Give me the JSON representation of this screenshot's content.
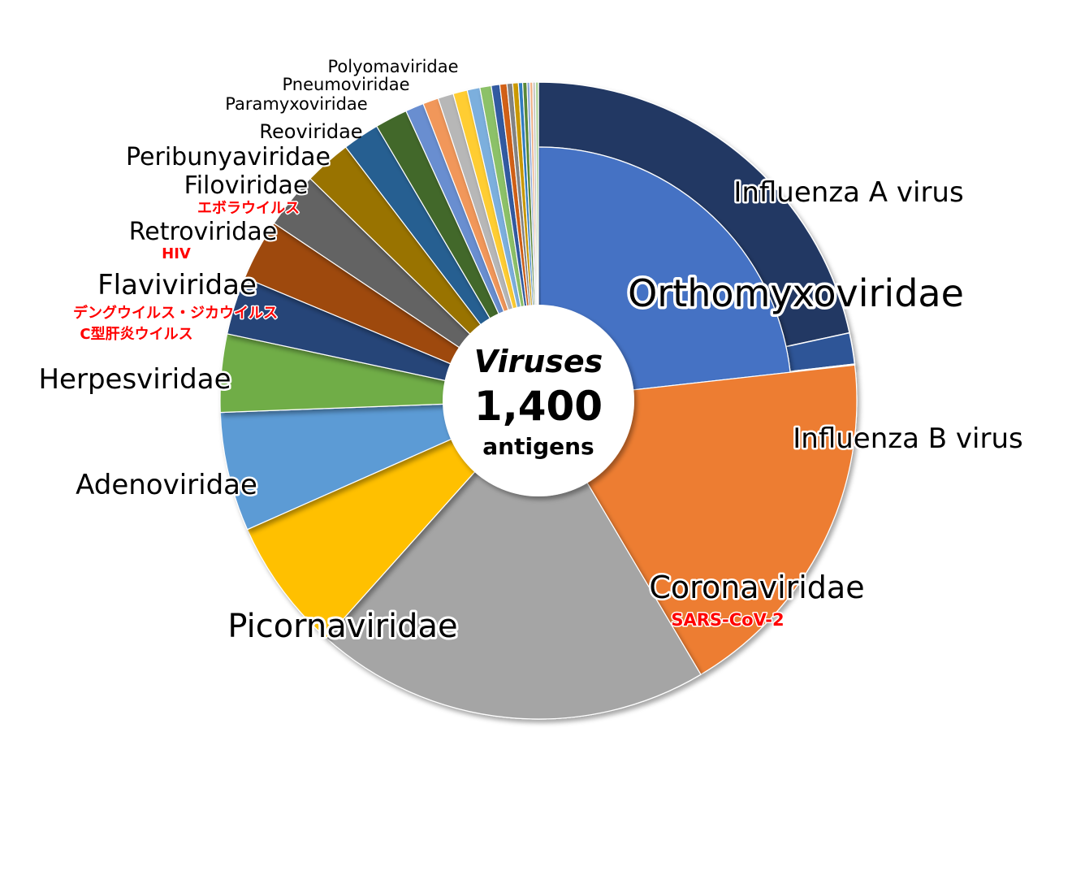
{
  "chart_data": {
    "type": "pie",
    "center": {
      "title": "Viruses",
      "value": "1,400",
      "unit": "antigens"
    },
    "outer_series": [
      {
        "label": "Influenza A virus",
        "value": 300,
        "color": "#203864"
      },
      {
        "label": "Influenza B virus",
        "value": 22,
        "color": "#2f5597"
      },
      {
        "label": "",
        "value": 0.7,
        "color": "#9dc3e6"
      }
    ],
    "slices": [
      {
        "label": "Orthomyxoviridae",
        "value": 323,
        "color": "#4472c4"
      },
      {
        "label": "Coronaviridae",
        "sublabel": "SARS-CoV-2",
        "value": 254,
        "color": "#ed7d31"
      },
      {
        "label": "Picornaviridae",
        "value": 280,
        "color": "#a5a5a5"
      },
      {
        "label": "Adenoviridae",
        "value": 94,
        "color": "#ffc000"
      },
      {
        "label": "Herpesviridae",
        "value": 84,
        "color": "#5b9bd5"
      },
      {
        "label": "Flaviviridae",
        "sublabel": "デングウイルス・ジカウイルス",
        "sublabel2": "C型肝炎ウイルス",
        "value": 55,
        "color": "#70ad47"
      },
      {
        "label": "Retroviridae",
        "sublabel": "HIV",
        "value": 41,
        "color": "#264478"
      },
      {
        "label": "Filoviridae",
        "sublabel": "エボラウイルス",
        "value": 43,
        "color": "#9e480e"
      },
      {
        "label": "Peribunyaviridae",
        "value": 40,
        "color": "#636363"
      },
      {
        "label": "Reoviridae",
        "value": 33,
        "color": "#997300"
      },
      {
        "label": "Paramyxoviridae",
        "value": 26,
        "color": "#255e91"
      },
      {
        "label": "Pneumoviridae",
        "value": 23,
        "color": "#43682b"
      },
      {
        "label": "Polyomaviridae",
        "value": 13,
        "color": "#698ed0"
      },
      {
        "label": "",
        "value": 11,
        "color": "#f1975a"
      },
      {
        "label": "",
        "value": 11,
        "color": "#b7b7b7"
      },
      {
        "label": "",
        "value": 10,
        "color": "#ffcd33"
      },
      {
        "label": "",
        "value": 9,
        "color": "#7cafdd"
      },
      {
        "label": "",
        "value": 8,
        "color": "#8cc168"
      },
      {
        "label": "",
        "value": 6,
        "color": "#335aa1"
      },
      {
        "label": "",
        "value": 5,
        "color": "#d26012"
      },
      {
        "label": "",
        "value": 4,
        "color": "#848484"
      },
      {
        "label": "",
        "value": 4,
        "color": "#cc9a00"
      },
      {
        "label": "",
        "value": 3,
        "color": "#327dc2"
      },
      {
        "label": "",
        "value": 3,
        "color": "#5a8a39"
      },
      {
        "label": "",
        "value": 2,
        "color": "#8faadc"
      },
      {
        "label": "",
        "value": 2,
        "color": "#f4b183"
      },
      {
        "label": "",
        "value": 2,
        "color": "#c9c9c9"
      },
      {
        "label": "",
        "value": 2,
        "color": "#a9d18e"
      }
    ]
  }
}
